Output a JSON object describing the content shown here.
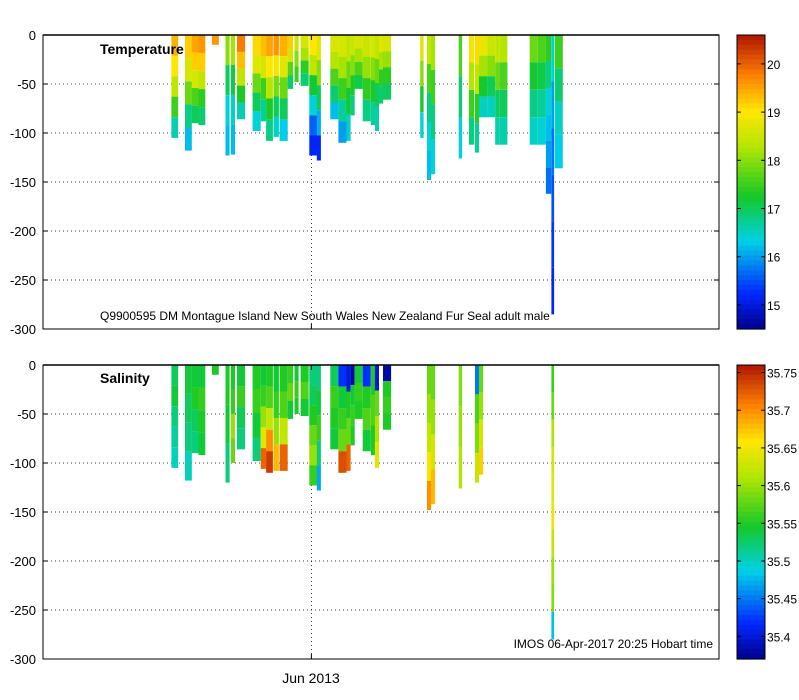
{
  "figure": {
    "subtitle": "Q9900595 DM Montague Island New South Wales New Zealand Fur Seal adult male",
    "footer": "IMOS 06-Apr-2017 20:25 Hobart time",
    "x_tick_label": "Jun 2013"
  },
  "chart_data": [
    {
      "type": "heatmap",
      "title": "Temperature",
      "ylim": [
        -300,
        0
      ],
      "y_ticks": [
        0,
        -50,
        -100,
        -150,
        -200,
        -250,
        -300
      ],
      "colorbar": {
        "range": [
          14.5,
          20.6
        ],
        "ticks": [
          15,
          16,
          17,
          18,
          19,
          20
        ]
      },
      "x_ticks": [
        "Jun 2013"
      ],
      "profiles": [
        {
          "x": 0.19,
          "width": 0.01,
          "max_depth": 105,
          "values": [
            19.4,
            19.0,
            18.4,
            17.5,
            16.6
          ]
        },
        {
          "x": 0.21,
          "width": 0.01,
          "max_depth": 118,
          "values": [
            19.2,
            18.6,
            17.8,
            16.8,
            16.2
          ]
        },
        {
          "x": 0.22,
          "width": 0.01,
          "max_depth": 90,
          "values": [
            19.5,
            19.2,
            18.6,
            17.6,
            17.0
          ]
        },
        {
          "x": 0.23,
          "width": 0.01,
          "max_depth": 92,
          "values": [
            19.6,
            19.2,
            18.4,
            17.4,
            16.9
          ]
        },
        {
          "x": 0.25,
          "width": 0.01,
          "max_depth": 10,
          "values": [
            19.6
          ]
        },
        {
          "x": 0.27,
          "width": 0.006,
          "max_depth": 123,
          "values": [
            18.0,
            17.0,
            16.4,
            16.2
          ]
        },
        {
          "x": 0.278,
          "width": 0.006,
          "max_depth": 122,
          "values": [
            18.2,
            17.1,
            16.5,
            16.2
          ]
        },
        {
          "x": 0.287,
          "width": 0.012,
          "max_depth": 86,
          "values": [
            19.8,
            19.3,
            18.4,
            17.3,
            16.6
          ]
        },
        {
          "x": 0.31,
          "width": 0.012,
          "max_depth": 98,
          "values": [
            19.1,
            18.7,
            17.8,
            17.0,
            16.4
          ]
        },
        {
          "x": 0.322,
          "width": 0.008,
          "max_depth": 88,
          "values": [
            19.3,
            18.6,
            17.5,
            16.7
          ]
        },
        {
          "x": 0.33,
          "width": 0.01,
          "max_depth": 108,
          "values": [
            19.5,
            19.0,
            18.3,
            17.3,
            16.8
          ]
        },
        {
          "x": 0.341,
          "width": 0.008,
          "max_depth": 104,
          "values": [
            19.6,
            18.9,
            17.9,
            17.0,
            16.5
          ]
        },
        {
          "x": 0.35,
          "width": 0.012,
          "max_depth": 108,
          "values": [
            19.4,
            18.7,
            17.8,
            17.0,
            16.3
          ]
        },
        {
          "x": 0.362,
          "width": 0.008,
          "max_depth": 55,
          "values": [
            19.2,
            18.6,
            17.7,
            16.9
          ]
        },
        {
          "x": 0.372,
          "width": 0.006,
          "max_depth": 48,
          "values": [
            18.5,
            18.0,
            17.5
          ]
        },
        {
          "x": 0.381,
          "width": 0.012,
          "max_depth": 52,
          "values": [
            18.6,
            18.2,
            17.4,
            16.9
          ]
        },
        {
          "x": 0.394,
          "width": 0.012,
          "max_depth": 123,
          "values": [
            19.0,
            18.4,
            17.2,
            16.4,
            15.6,
            15.2
          ]
        },
        {
          "x": 0.405,
          "width": 0.006,
          "max_depth": 128,
          "values": [
            18.7,
            18.0,
            17.0,
            16.1,
            15.2
          ]
        },
        {
          "x": 0.425,
          "width": 0.012,
          "max_depth": 86,
          "values": [
            18.6,
            18.3,
            17.6,
            16.9,
            16.2
          ]
        },
        {
          "x": 0.437,
          "width": 0.012,
          "max_depth": 110,
          "values": [
            18.6,
            18.2,
            17.5,
            16.7,
            16.0
          ]
        },
        {
          "x": 0.449,
          "width": 0.006,
          "max_depth": 108,
          "values": [
            18.4,
            17.8,
            17.2,
            16.5
          ]
        },
        {
          "x": 0.455,
          "width": 0.006,
          "max_depth": 82,
          "values": [
            18.5,
            18.0,
            17.3,
            16.8
          ]
        },
        {
          "x": 0.461,
          "width": 0.012,
          "max_depth": 55,
          "values": [
            18.6,
            18.2,
            17.6,
            17.1
          ]
        },
        {
          "x": 0.473,
          "width": 0.012,
          "max_depth": 88,
          "values": [
            18.5,
            18.1,
            17.4,
            16.8
          ]
        },
        {
          "x": 0.485,
          "width": 0.006,
          "max_depth": 92,
          "values": [
            18.6,
            18.0,
            17.3,
            16.7
          ]
        },
        {
          "x": 0.491,
          "width": 0.006,
          "max_depth": 98,
          "values": [
            18.4,
            17.8,
            17.0,
            16.6
          ]
        },
        {
          "x": 0.497,
          "width": 0.006,
          "max_depth": 70,
          "values": [
            18.7,
            18.2,
            17.4,
            16.9
          ]
        },
        {
          "x": 0.503,
          "width": 0.012,
          "max_depth": 66,
          "values": [
            18.6,
            18.1,
            17.4,
            17.0
          ]
        },
        {
          "x": 0.558,
          "width": 0.005,
          "max_depth": 105,
          "values": [
            18.7,
            18.0,
            17.2,
            16.4
          ]
        },
        {
          "x": 0.568,
          "width": 0.006,
          "max_depth": 148,
          "values": [
            18.4,
            17.6,
            16.8,
            16.4,
            16.2
          ]
        },
        {
          "x": 0.574,
          "width": 0.006,
          "max_depth": 142,
          "values": [
            18.2,
            17.5,
            16.8,
            16.4
          ]
        },
        {
          "x": 0.615,
          "width": 0.005,
          "max_depth": 126,
          "values": [
            17.6,
            16.9,
            16.4
          ]
        },
        {
          "x": 0.63,
          "width": 0.008,
          "max_depth": 112,
          "values": [
            18.9,
            18.3,
            17.5,
            16.8
          ]
        },
        {
          "x": 0.639,
          "width": 0.006,
          "max_depth": 120,
          "values": [
            19.1,
            18.4,
            17.4,
            16.7
          ]
        },
        {
          "x": 0.645,
          "width": 0.012,
          "max_depth": 84,
          "values": [
            18.8,
            18.2,
            17.2,
            16.5
          ]
        },
        {
          "x": 0.657,
          "width": 0.012,
          "max_depth": 84,
          "values": [
            18.5,
            18.0,
            17.0,
            16.5
          ]
        },
        {
          "x": 0.669,
          "width": 0.006,
          "max_depth": 112,
          "values": [
            18.4,
            17.8,
            17.0,
            16.6
          ]
        },
        {
          "x": 0.675,
          "width": 0.012,
          "max_depth": 112,
          "values": [
            18.3,
            17.6,
            17.0,
            16.6
          ]
        },
        {
          "x": 0.72,
          "width": 0.012,
          "max_depth": 112,
          "values": [
            17.8,
            17.2,
            16.8,
            16.5
          ]
        },
        {
          "x": 0.732,
          "width": 0.012,
          "max_depth": 112,
          "values": [
            17.6,
            17.1,
            16.7,
            16.4
          ]
        },
        {
          "x": 0.744,
          "width": 0.008,
          "max_depth": 162,
          "values": [
            17.4,
            16.8,
            16.4,
            16.2,
            16.0,
            15.7
          ]
        },
        {
          "x": 0.752,
          "width": 0.004,
          "max_depth": 285,
          "values": [
            16.4,
            16.0,
            15.7,
            15.5,
            15.3,
            15.2
          ]
        },
        {
          "x": 0.757,
          "width": 0.012,
          "max_depth": 136,
          "values": [
            17.5,
            16.9,
            16.5,
            16.3
          ]
        }
      ]
    },
    {
      "type": "heatmap",
      "title": "Salinity",
      "ylim": [
        -300,
        0
      ],
      "y_ticks": [
        0,
        -50,
        -100,
        -150,
        -200,
        -250,
        -300
      ],
      "colorbar": {
        "range": [
          35.37,
          35.76
        ],
        "ticks": [
          35.4,
          35.45,
          35.5,
          35.55,
          35.6,
          35.65,
          35.7,
          35.75
        ]
      },
      "x_ticks": [
        "Jun 2013"
      ],
      "profiles": [
        {
          "x": 0.19,
          "width": 0.01,
          "max_depth": 105,
          "values": [
            35.53,
            35.54,
            35.52,
            35.51,
            35.5
          ]
        },
        {
          "x": 0.21,
          "width": 0.01,
          "max_depth": 118,
          "values": [
            35.54,
            35.53,
            35.52,
            35.5
          ]
        },
        {
          "x": 0.22,
          "width": 0.01,
          "max_depth": 90,
          "values": [
            35.54,
            35.55,
            35.53,
            35.52
          ]
        },
        {
          "x": 0.23,
          "width": 0.01,
          "max_depth": 92,
          "values": [
            35.54,
            35.56,
            35.55,
            35.54
          ]
        },
        {
          "x": 0.25,
          "width": 0.01,
          "max_depth": 10,
          "values": [
            35.55
          ]
        },
        {
          "x": 0.27,
          "width": 0.006,
          "max_depth": 120,
          "values": [
            35.55,
            35.54,
            35.52
          ]
        },
        {
          "x": 0.278,
          "width": 0.006,
          "max_depth": 100,
          "values": [
            35.55,
            35.56,
            35.6,
            35.58
          ]
        },
        {
          "x": 0.287,
          "width": 0.012,
          "max_depth": 86,
          "values": [
            35.54,
            35.56,
            35.53,
            35.52
          ]
        },
        {
          "x": 0.31,
          "width": 0.012,
          "max_depth": 98,
          "values": [
            35.55,
            35.56,
            35.54,
            35.52
          ]
        },
        {
          "x": 0.322,
          "width": 0.008,
          "max_depth": 106,
          "values": [
            35.54,
            35.56,
            35.6,
            35.64,
            35.72
          ]
        },
        {
          "x": 0.33,
          "width": 0.01,
          "max_depth": 110,
          "values": [
            35.55,
            35.57,
            35.62,
            35.7,
            35.74
          ]
        },
        {
          "x": 0.341,
          "width": 0.008,
          "max_depth": 108,
          "values": [
            35.54,
            35.56,
            35.6,
            35.68
          ]
        },
        {
          "x": 0.35,
          "width": 0.012,
          "max_depth": 108,
          "values": [
            35.55,
            35.57,
            35.62,
            35.72
          ]
        },
        {
          "x": 0.362,
          "width": 0.008,
          "max_depth": 55,
          "values": [
            35.56,
            35.58,
            35.54
          ]
        },
        {
          "x": 0.372,
          "width": 0.006,
          "max_depth": 50,
          "values": [
            35.54,
            35.56,
            35.55
          ]
        },
        {
          "x": 0.381,
          "width": 0.012,
          "max_depth": 52,
          "values": [
            35.55,
            35.57,
            35.54
          ]
        },
        {
          "x": 0.394,
          "width": 0.012,
          "max_depth": 123,
          "values": [
            35.52,
            35.53,
            35.55,
            35.58,
            35.6,
            35.56
          ]
        },
        {
          "x": 0.405,
          "width": 0.006,
          "max_depth": 128,
          "values": [
            35.52,
            35.54,
            35.56,
            35.52,
            35.47
          ]
        },
        {
          "x": 0.425,
          "width": 0.012,
          "max_depth": 86,
          "values": [
            35.53,
            35.56,
            35.55,
            35.54
          ]
        },
        {
          "x": 0.437,
          "width": 0.012,
          "max_depth": 110,
          "values": [
            35.42,
            35.54,
            35.56,
            35.58,
            35.73
          ]
        },
        {
          "x": 0.449,
          "width": 0.006,
          "max_depth": 108,
          "values": [
            35.4,
            35.55,
            35.58,
            35.72
          ]
        },
        {
          "x": 0.455,
          "width": 0.006,
          "max_depth": 82,
          "values": [
            35.38,
            35.54,
            35.56,
            35.55
          ]
        },
        {
          "x": 0.461,
          "width": 0.012,
          "max_depth": 55,
          "values": [
            35.54,
            35.56,
            35.55
          ]
        },
        {
          "x": 0.473,
          "width": 0.012,
          "max_depth": 88,
          "values": [
            35.42,
            35.55,
            35.57,
            35.54
          ]
        },
        {
          "x": 0.485,
          "width": 0.006,
          "max_depth": 92,
          "values": [
            35.55,
            35.57,
            35.55
          ]
        },
        {
          "x": 0.491,
          "width": 0.006,
          "max_depth": 105,
          "values": [
            35.4,
            35.58,
            35.61,
            35.64
          ]
        },
        {
          "x": 0.503,
          "width": 0.012,
          "max_depth": 66,
          "values": [
            35.38,
            35.55,
            35.56,
            35.55
          ]
        },
        {
          "x": 0.568,
          "width": 0.006,
          "max_depth": 148,
          "values": [
            35.58,
            35.6,
            35.62,
            35.66,
            35.7
          ]
        },
        {
          "x": 0.574,
          "width": 0.006,
          "max_depth": 142,
          "values": [
            35.58,
            35.6,
            35.63,
            35.68
          ]
        },
        {
          "x": 0.615,
          "width": 0.005,
          "max_depth": 126,
          "values": [
            35.59,
            35.6,
            35.61
          ]
        },
        {
          "x": 0.639,
          "width": 0.006,
          "max_depth": 120,
          "values": [
            35.45,
            35.57,
            35.59,
            35.62
          ]
        },
        {
          "x": 0.645,
          "width": 0.006,
          "max_depth": 112,
          "values": [
            35.58,
            35.6,
            35.63,
            35.67
          ]
        },
        {
          "x": 0.752,
          "width": 0.004,
          "max_depth": 280,
          "values": [
            35.56,
            35.58,
            35.61,
            35.63,
            35.64,
            35.65,
            35.62,
            35.6,
            35.59,
            35.48
          ]
        }
      ]
    }
  ]
}
